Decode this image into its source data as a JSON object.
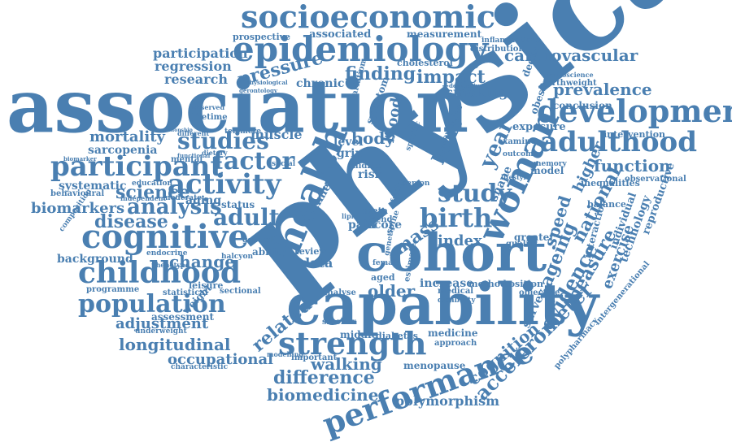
{
  "word_color": "#4a7fb1",
  "background": "#ffffff",
  "words": [
    "physical",
    "association",
    "capability",
    "cohort",
    "socioeconomic",
    "epidemiology",
    "development",
    "adulthood",
    "cognitive",
    "childhood",
    "strength",
    "performance",
    "activity",
    "participant",
    "population",
    "health",
    "woman",
    "birth",
    "studies",
    "study",
    "factor",
    "adult",
    "analysis",
    "longitudinal",
    "prevalence",
    "cardiovascular",
    "function",
    "accelerometer",
    "evidence",
    "ageing",
    "national",
    "measure",
    "speed",
    "higher",
    "difference",
    "walking",
    "cognition",
    "mortality",
    "pressure",
    "finding",
    "impact",
    "science",
    "disease",
    "biomarkers",
    "change",
    "adjustment",
    "related",
    "older",
    "data",
    "bone",
    "body",
    "research",
    "regression",
    "participation",
    "biomedicine",
    "occupational",
    "year",
    "index",
    "mass",
    "polymorphism",
    "exercise",
    "measurement",
    "associated",
    "prospective",
    "chronic",
    "smoking",
    "muscle",
    "telomere",
    "sarcopenia",
    "systematic",
    "background",
    "aging",
    "status",
    "assessment",
    "middle",
    "diabetes",
    "medicine",
    "approach",
    "survey",
    "technology",
    "increase",
    "method",
    "position",
    "objective",
    "blood",
    "lifetime",
    "observed",
    "score",
    "pain",
    "risk",
    "level",
    "grip",
    "time",
    "ability",
    "review",
    "leisure",
    "sectional",
    "statistical",
    "programme",
    "weight",
    "menopause",
    "smoker",
    "reproductive",
    "individual",
    "interaction",
    "balance",
    "intervention",
    "exposure",
    "conclusion",
    "decline",
    "obesity",
    "birthweight",
    "neuroscience",
    "depressive",
    "inflammation",
    "distribution",
    "cholesterol",
    "symptom",
    "variation",
    "social",
    "mental",
    "education",
    "independent",
    "moderate",
    "behavioural",
    "composition",
    "endocrine",
    "phenotype",
    "general",
    "halcyon",
    "estimate",
    "genetic",
    "examine",
    "outcome",
    "greater",
    "quality",
    "model",
    "memory",
    "inequalities",
    "observational",
    "intergenerational",
    "polypharmacy",
    "countries",
    "aged",
    "person",
    "shape",
    "female",
    "characteristic",
    "underweight",
    "meta",
    "trend",
    "lipid",
    "medical",
    "disability",
    "analyse",
    "important",
    "modelling",
    "midlife",
    "physiological",
    "gerontology",
    "dietary",
    "relationship",
    "different",
    "biomarker",
    "functional",
    "spine",
    "frailty",
    "specific",
    "lifestyle"
  ]
}
